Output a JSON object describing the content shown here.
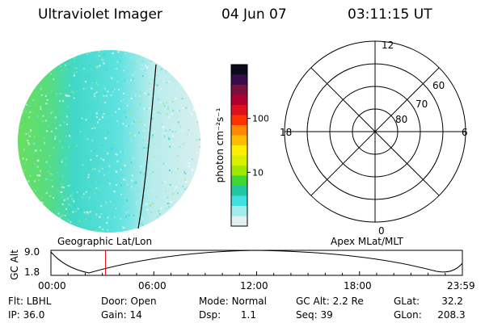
{
  "header": {
    "title": "Ultraviolet Imager",
    "date": "04 Jun 07",
    "time": "03:11:15 UT"
  },
  "colorbar": {
    "unit_label": "photon cm⁻²s⁻¹",
    "ticks": [
      {
        "label": "100",
        "value": 100
      },
      {
        "label": "10",
        "value": 10
      }
    ],
    "colors": [
      "#0a0a1a",
      "#3a0a4a",
      "#7a1040",
      "#b00030",
      "#e01020",
      "#ff3300",
      "#ff8800",
      "#ffbb00",
      "#ffee00",
      "#d8f000",
      "#a0e800",
      "#40d830",
      "#20c8a0",
      "#40e0e0",
      "#a0ecec",
      "#e0f0f0"
    ]
  },
  "polar": {
    "mlt_labels": {
      "top": "12",
      "left": "18",
      "right": "6",
      "bottom": "0"
    },
    "lat_labels": [
      "60",
      "70",
      "80"
    ]
  },
  "timeline": {
    "left_title": "Geographic Lat/Lon",
    "right_title": "Apex MLat/MLT",
    "y_axis_label": "GC Alt",
    "y_ticks": [
      "9.0",
      "1.8"
    ],
    "x_ticks": [
      "00:00",
      "06:00",
      "12:00",
      "18:00",
      "23:59"
    ],
    "current_time_hours": 3.1875
  },
  "info": {
    "row1": [
      {
        "label": "Flt:",
        "value": "LBHL"
      },
      {
        "label": "Door:",
        "value": "Open"
      },
      {
        "label": "Mode:",
        "value": "Normal"
      },
      {
        "label": "GC Alt:",
        "value": "2.2 Re"
      },
      {
        "label": "GLat:",
        "value": "32.2"
      }
    ],
    "row2": [
      {
        "label": "IP:",
        "value": "36.0"
      },
      {
        "label": "Gain:",
        "value": "14"
      },
      {
        "label": "Dsp:",
        "value": "1.1"
      },
      {
        "label": "Seq:",
        "value": "39"
      },
      {
        "label": "GLon:",
        "value": "208.3"
      }
    ]
  }
}
